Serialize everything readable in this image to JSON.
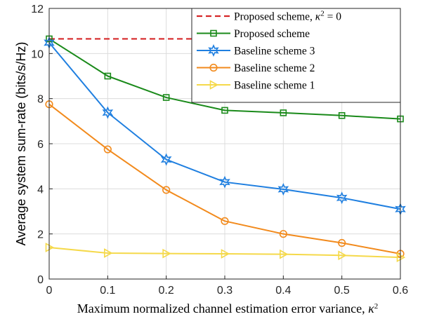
{
  "chart_data": {
    "type": "line",
    "xlabel": "Maximum normalized channel estimation error variance, κ²",
    "ylabel": "Average system sum-rate (bits/s/Hz)",
    "xlim": [
      0,
      0.6
    ],
    "ylim": [
      0,
      12
    ],
    "xticks": [
      0,
      0.1,
      0.2,
      0.3,
      0.4,
      0.5,
      0.6
    ],
    "xtick_labels": [
      "0",
      "0.1",
      "0.2",
      "0.3",
      "0.4",
      "0.5",
      "0.6"
    ],
    "yticks": [
      0,
      2,
      4,
      6,
      8,
      10,
      12
    ],
    "ytick_labels": [
      "0",
      "2",
      "4",
      "6",
      "8",
      "10",
      "12"
    ],
    "grid": true,
    "legend_position": "top-right",
    "x": [
      0,
      0.1,
      0.2,
      0.3,
      0.4,
      0.5,
      0.6
    ],
    "series": [
      {
        "name": "Proposed scheme, κ² = 0",
        "color": "#d62728",
        "dash": true,
        "marker": "none",
        "values": [
          10.65,
          10.65,
          10.65,
          10.65,
          10.65,
          10.65,
          10.65
        ]
      },
      {
        "name": "Proposed scheme",
        "color": "#1a8a1a",
        "marker": "square",
        "values": [
          10.65,
          9.0,
          8.05,
          7.48,
          7.37,
          7.25,
          7.1
        ]
      },
      {
        "name": "Baseline scheme 3",
        "color": "#1f7fe0",
        "marker": "hexagram",
        "values": [
          10.48,
          7.38,
          5.3,
          4.3,
          3.98,
          3.6,
          3.1
        ]
      },
      {
        "name": "Baseline scheme 2",
        "color": "#f28a1c",
        "marker": "circle",
        "values": [
          7.75,
          5.75,
          3.95,
          2.57,
          2.0,
          1.6,
          1.12
        ]
      },
      {
        "name": "Baseline scheme 1",
        "color": "#f5d94a",
        "marker": "triangle-right",
        "values": [
          1.4,
          1.15,
          1.13,
          1.12,
          1.1,
          1.05,
          0.96
        ]
      }
    ],
    "legend_text": [
      {
        "base": "Proposed scheme, ",
        "sym": "κ",
        "sup": "2",
        "tail": " = 0"
      },
      {
        "base": "Proposed scheme",
        "sym": "",
        "sup": "",
        "tail": ""
      },
      {
        "base": "Baseline scheme 3",
        "sym": "",
        "sup": "",
        "tail": ""
      },
      {
        "base": "Baseline scheme 2",
        "sym": "",
        "sup": "",
        "tail": ""
      },
      {
        "base": "Baseline scheme 1",
        "sym": "",
        "sup": "",
        "tail": ""
      }
    ],
    "xlabel_parts": {
      "base": "Maximum normalized channel estimation error variance, ",
      "sym": "κ",
      "sup": "2"
    }
  }
}
